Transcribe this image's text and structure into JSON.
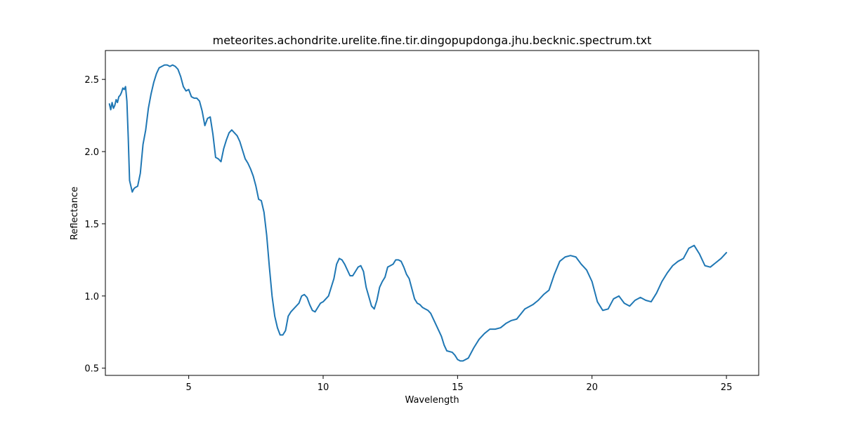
{
  "chart_data": {
    "type": "line",
    "title": "meteorites.achondrite.urelite.fine.tir.dingopupdonga.jhu.becknic.spectrum.txt",
    "xlabel": "Wavelength",
    "ylabel": "Reflectance",
    "xlim": [
      1.9,
      26.2
    ],
    "ylim": [
      0.45,
      2.7
    ],
    "xticks": [
      5,
      10,
      15,
      20,
      25
    ],
    "xtick_labels": [
      "5",
      "10",
      "15",
      "20",
      "25"
    ],
    "yticks": [
      0.5,
      1.0,
      1.5,
      2.0,
      2.5
    ],
    "ytick_labels": [
      "0.5",
      "1.0",
      "1.5",
      "2.0",
      "2.5"
    ],
    "grid": false,
    "colors": {
      "line": "#1f77b4"
    },
    "series": [
      {
        "x": [
          2.05,
          2.1,
          2.15,
          2.2,
          2.25,
          2.3,
          2.35,
          2.4,
          2.45,
          2.5,
          2.55,
          2.6,
          2.65,
          2.7,
          2.75,
          2.8,
          2.85,
          2.9,
          2.95,
          3.0,
          3.1,
          3.2,
          3.3,
          3.4,
          3.5,
          3.6,
          3.7,
          3.8,
          3.9,
          4.0,
          4.1,
          4.2,
          4.3,
          4.4,
          4.5,
          4.6,
          4.7,
          4.8,
          4.9,
          5.0,
          5.1,
          5.2,
          5.3,
          5.4,
          5.5,
          5.6,
          5.7,
          5.8,
          5.9,
          6.0,
          6.1,
          6.2,
          6.3,
          6.4,
          6.5,
          6.6,
          6.7,
          6.8,
          6.9,
          7.0,
          7.1,
          7.2,
          7.3,
          7.4,
          7.5,
          7.6,
          7.7,
          7.8,
          7.9,
          8.0,
          8.1,
          8.2,
          8.3,
          8.4,
          8.5,
          8.6,
          8.7,
          8.8,
          8.9,
          9.0,
          9.1,
          9.2,
          9.3,
          9.4,
          9.5,
          9.6,
          9.7,
          9.8,
          9.9,
          10.0,
          10.2,
          10.4,
          10.5,
          10.6,
          10.7,
          10.8,
          11.0,
          11.1,
          11.2,
          11.3,
          11.4,
          11.5,
          11.6,
          11.8,
          11.9,
          12.0,
          12.1,
          12.2,
          12.3,
          12.4,
          12.5,
          12.6,
          12.7,
          12.8,
          12.9,
          13.0,
          13.1,
          13.2,
          13.3,
          13.4,
          13.5,
          13.6,
          13.7,
          13.8,
          13.9,
          14.0,
          14.2,
          14.4,
          14.5,
          14.6,
          14.8,
          14.9,
          15.0,
          15.1,
          15.2,
          15.4,
          15.6,
          15.8,
          16.0,
          16.2,
          16.4,
          16.6,
          16.8,
          17.0,
          17.2,
          17.5,
          17.8,
          18.0,
          18.2,
          18.4,
          18.6,
          18.8,
          19.0,
          19.2,
          19.4,
          19.6,
          19.8,
          20.0,
          20.2,
          20.4,
          20.6,
          20.8,
          21.0,
          21.2,
          21.4,
          21.6,
          21.8,
          22.0,
          22.2,
          22.4,
          22.6,
          22.8,
          23.0,
          23.2,
          23.4,
          23.6,
          23.8,
          24.0,
          24.2,
          24.4,
          24.6,
          24.8,
          25.0
        ],
        "y": [
          2.33,
          2.29,
          2.34,
          2.3,
          2.32,
          2.36,
          2.34,
          2.38,
          2.39,
          2.41,
          2.44,
          2.43,
          2.45,
          2.35,
          2.1,
          1.8,
          1.76,
          1.72,
          1.74,
          1.75,
          1.76,
          1.85,
          2.05,
          2.15,
          2.3,
          2.4,
          2.48,
          2.54,
          2.58,
          2.59,
          2.6,
          2.6,
          2.59,
          2.6,
          2.59,
          2.57,
          2.52,
          2.45,
          2.42,
          2.43,
          2.38,
          2.37,
          2.37,
          2.35,
          2.28,
          2.18,
          2.23,
          2.24,
          2.12,
          1.96,
          1.95,
          1.93,
          2.02,
          2.08,
          2.13,
          2.15,
          2.13,
          2.11,
          2.07,
          2.01,
          1.95,
          1.92,
          1.88,
          1.83,
          1.76,
          1.67,
          1.66,
          1.58,
          1.42,
          1.2,
          1.0,
          0.86,
          0.78,
          0.73,
          0.73,
          0.76,
          0.86,
          0.89,
          0.91,
          0.93,
          0.95,
          1.0,
          1.01,
          0.99,
          0.94,
          0.9,
          0.89,
          0.92,
          0.95,
          0.96,
          1.0,
          1.12,
          1.22,
          1.26,
          1.25,
          1.22,
          1.14,
          1.14,
          1.17,
          1.2,
          1.21,
          1.17,
          1.06,
          0.93,
          0.91,
          0.97,
          1.06,
          1.1,
          1.13,
          1.2,
          1.21,
          1.22,
          1.25,
          1.25,
          1.24,
          1.2,
          1.15,
          1.12,
          1.05,
          0.98,
          0.95,
          0.94,
          0.92,
          0.91,
          0.9,
          0.88,
          0.8,
          0.72,
          0.66,
          0.62,
          0.61,
          0.59,
          0.56,
          0.55,
          0.55,
          0.57,
          0.64,
          0.7,
          0.74,
          0.77,
          0.77,
          0.78,
          0.81,
          0.83,
          0.84,
          0.91,
          0.94,
          0.97,
          1.01,
          1.04,
          1.15,
          1.24,
          1.27,
          1.28,
          1.27,
          1.22,
          1.18,
          1.1,
          0.96,
          0.9,
          0.91,
          0.98,
          1.0,
          0.95,
          0.93,
          0.97,
          0.99,
          0.97,
          0.96,
          1.02,
          1.1,
          1.16,
          1.21,
          1.24,
          1.26,
          1.33,
          1.35,
          1.29,
          1.21,
          1.2,
          1.23,
          1.26,
          1.3
        ]
      }
    ]
  }
}
